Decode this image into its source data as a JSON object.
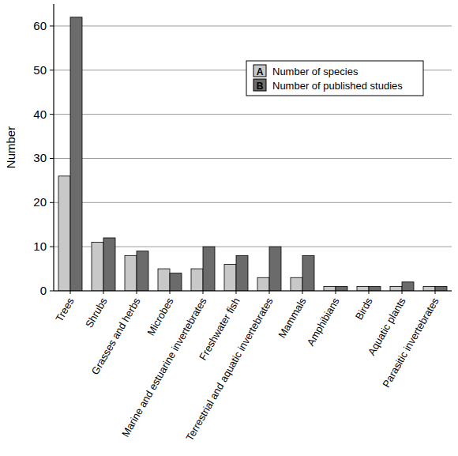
{
  "chart_data": {
    "type": "bar",
    "y_label": "Number",
    "categories": [
      "Trees",
      "Shrubs",
      "Grasses and herbs",
      "Microbes",
      "Marine and estuarine invertebrates",
      "Freshwater fish",
      "Terrestrial and aquatic invertebrates",
      "Mammals",
      "Amphibians",
      "Birds",
      "Aquatic plants",
      "Parasitic invertebrates"
    ],
    "series": [
      {
        "name": "Number of species",
        "key": "A",
        "color": "#c8c8c8",
        "values": [
          26,
          11,
          8,
          5,
          5,
          6,
          3,
          3,
          1,
          1,
          1,
          1
        ]
      },
      {
        "name": "Number of published studies",
        "key": "B",
        "color": "#6b6b6b",
        "values": [
          62,
          12,
          9,
          4,
          10,
          8,
          10,
          8,
          1,
          1,
          2,
          1
        ]
      }
    ],
    "ylim": [
      0,
      65
    ],
    "yticks": [
      0,
      10,
      20,
      30,
      40,
      50,
      60
    ],
    "grid": true,
    "legend": "upper right"
  }
}
